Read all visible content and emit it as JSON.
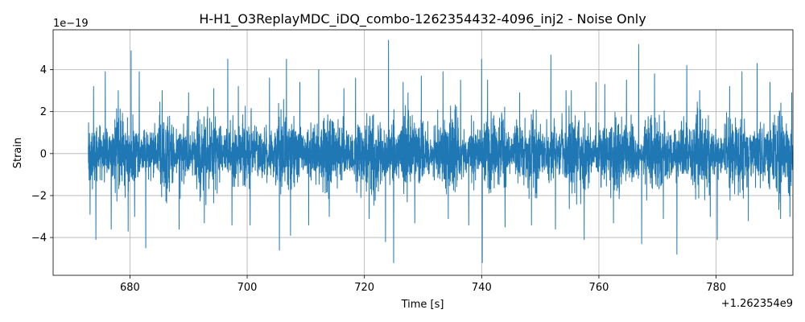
{
  "chart_data": {
    "type": "line",
    "title": "H-H1_O3ReplayMDC_iDQ_combo-1262354432-4096_inj2 - Noise Only",
    "xlabel": "Time [s]",
    "ylabel": "Strain",
    "x_offset_label": "+1.262354e9",
    "y_scale_label": "1e−19",
    "xlim": [
      666.9,
      793.1
    ],
    "ylim": [
      -5.8,
      5.9
    ],
    "x_ticks": [
      680,
      700,
      720,
      740,
      760,
      780
    ],
    "x_tick_labels": [
      "680",
      "700",
      "720",
      "740",
      "760",
      "780"
    ],
    "y_ticks": [
      -4,
      -2,
      0,
      2,
      4
    ],
    "y_tick_labels": [
      "−4",
      "−2",
      "0",
      "2",
      "4"
    ],
    "grid": true,
    "series": [
      {
        "color": "#1f77b4",
        "x_start": 672.9,
        "x_end": 793.1,
        "typical_amplitude": 1.2,
        "peaks": [
          {
            "x": 673.2,
            "y": -2.9
          },
          {
            "x": 673.8,
            "y": 3.2
          },
          {
            "x": 674.2,
            "y": -4.1
          },
          {
            "x": 675.8,
            "y": 3.9
          },
          {
            "x": 676.8,
            "y": -3.6
          },
          {
            "x": 678.0,
            "y": 3.0
          },
          {
            "x": 679.7,
            "y": -3.7
          },
          {
            "x": 680.2,
            "y": 4.9
          },
          {
            "x": 680.8,
            "y": -3.0
          },
          {
            "x": 681.6,
            "y": 3.9
          },
          {
            "x": 682.7,
            "y": -4.5
          },
          {
            "x": 685.5,
            "y": 3.0
          },
          {
            "x": 688.4,
            "y": -3.6
          },
          {
            "x": 690.0,
            "y": 2.9
          },
          {
            "x": 692.7,
            "y": -3.3
          },
          {
            "x": 694.3,
            "y": 3.1
          },
          {
            "x": 696.7,
            "y": 4.5
          },
          {
            "x": 697.4,
            "y": -3.4
          },
          {
            "x": 698.5,
            "y": 3.2
          },
          {
            "x": 700.5,
            "y": -3.4
          },
          {
            "x": 703.8,
            "y": 3.6
          },
          {
            "x": 705.5,
            "y": -4.6
          },
          {
            "x": 706.7,
            "y": 4.5
          },
          {
            "x": 707.4,
            "y": -3.9
          },
          {
            "x": 709.0,
            "y": 3.4
          },
          {
            "x": 710.5,
            "y": -3.4
          },
          {
            "x": 712.2,
            "y": 4.0
          },
          {
            "x": 714.0,
            "y": -3.0
          },
          {
            "x": 716.5,
            "y": 3.1
          },
          {
            "x": 718.5,
            "y": 3.6
          },
          {
            "x": 720.8,
            "y": -3.1
          },
          {
            "x": 723.6,
            "y": -4.2
          },
          {
            "x": 724.1,
            "y": 5.4
          },
          {
            "x": 725.0,
            "y": -5.2
          },
          {
            "x": 726.6,
            "y": 3.4
          },
          {
            "x": 728.6,
            "y": -3.3
          },
          {
            "x": 729.7,
            "y": 3.7
          },
          {
            "x": 733.4,
            "y": 3.9
          },
          {
            "x": 734.3,
            "y": -3.1
          },
          {
            "x": 736.4,
            "y": 3.5
          },
          {
            "x": 737.8,
            "y": -3.4
          },
          {
            "x": 740.0,
            "y": 4.5
          },
          {
            "x": 740.1,
            "y": -5.2
          },
          {
            "x": 741.0,
            "y": 3.5
          },
          {
            "x": 744.0,
            "y": -3.5
          },
          {
            "x": 746.5,
            "y": 2.9
          },
          {
            "x": 748.5,
            "y": -3.4
          },
          {
            "x": 751.8,
            "y": 4.7
          },
          {
            "x": 752.6,
            "y": -3.6
          },
          {
            "x": 755.3,
            "y": 3.0
          },
          {
            "x": 757.5,
            "y": -4.1
          },
          {
            "x": 759.5,
            "y": 3.4
          },
          {
            "x": 761.0,
            "y": 3.3
          },
          {
            "x": 762.5,
            "y": -3.3
          },
          {
            "x": 764.7,
            "y": 3.5
          },
          {
            "x": 766.8,
            "y": 5.2
          },
          {
            "x": 767.3,
            "y": -4.3
          },
          {
            "x": 769.5,
            "y": 3.8
          },
          {
            "x": 771.0,
            "y": -3.1
          },
          {
            "x": 773.3,
            "y": -4.8
          },
          {
            "x": 775.0,
            "y": 4.2
          },
          {
            "x": 777.2,
            "y": 3.0
          },
          {
            "x": 779.0,
            "y": -3.0
          },
          {
            "x": 780.2,
            "y": -4.1
          },
          {
            "x": 782.3,
            "y": 3.2
          },
          {
            "x": 784.4,
            "y": 3.9
          },
          {
            "x": 785.5,
            "y": -3.2
          },
          {
            "x": 787.0,
            "y": 4.3
          },
          {
            "x": 789.2,
            "y": 3.4
          },
          {
            "x": 791.0,
            "y": -3.1
          },
          {
            "x": 792.6,
            "y": -3.0
          },
          {
            "x": 792.9,
            "y": 2.9
          }
        ]
      }
    ]
  }
}
